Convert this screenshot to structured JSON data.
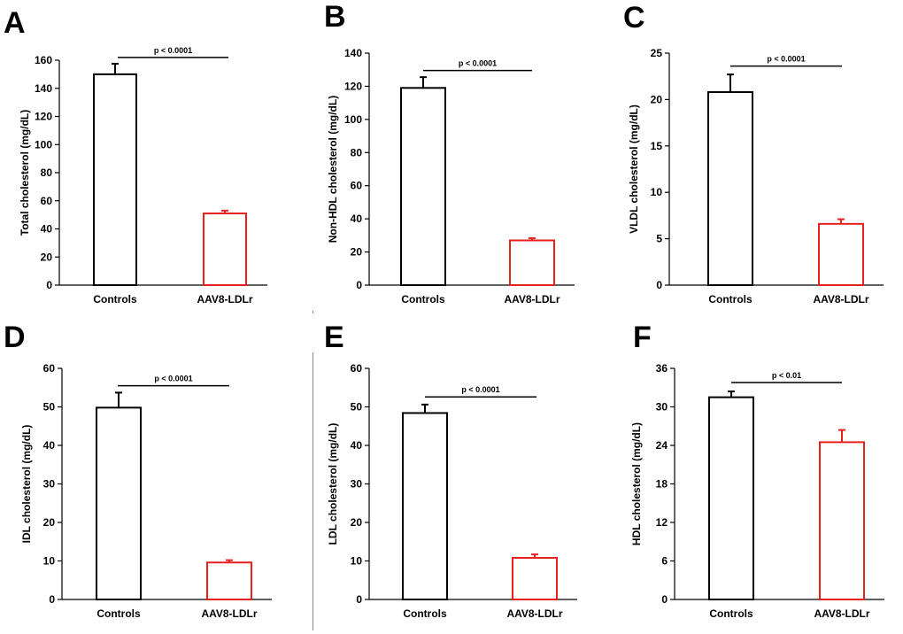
{
  "colors": {
    "controls": "#000000",
    "treated": "#e8201e",
    "axis": "#000000"
  },
  "chart_data": [
    {
      "panel": "A",
      "type": "bar",
      "ylabel": "Total cholesterol (mg/dL)",
      "categories": [
        "Controls",
        "AAV8-LDLr"
      ],
      "values": [
        150,
        51
      ],
      "errors": [
        7.5,
        2
      ],
      "ylim": [
        0,
        160
      ],
      "yticks": [
        0,
        20,
        40,
        60,
        80,
        100,
        120,
        140,
        160
      ],
      "significance": "p < 0.0001",
      "sig_y": 162
    },
    {
      "panel": "B",
      "type": "bar",
      "ylabel": "Non-HDL cholesterol (mg/dL)",
      "categories": [
        "Controls",
        "AAV8-LDLr"
      ],
      "values": [
        119,
        27
      ],
      "errors": [
        6.5,
        1.3
      ],
      "ylim": [
        0,
        140
      ],
      "yticks": [
        0,
        20,
        40,
        60,
        80,
        100,
        120,
        140
      ],
      "significance": "p < 0.0001",
      "sig_y": 129.5
    },
    {
      "panel": "C",
      "type": "bar",
      "ylabel": "VLDL cholesterol (mg/dL)",
      "categories": [
        "Controls",
        "AAV8-LDLr"
      ],
      "values": [
        20.8,
        6.6
      ],
      "errors": [
        1.9,
        0.5
      ],
      "ylim": [
        0,
        25
      ],
      "yticks": [
        0,
        5,
        10,
        15,
        20,
        25
      ],
      "significance": "p < 0.0001",
      "sig_y": 23.6
    },
    {
      "panel": "D",
      "type": "bar",
      "ylabel": "IDL cholesterol (mg/dL)",
      "categories": [
        "Controls",
        "AAV8-LDLr"
      ],
      "values": [
        49.8,
        9.6
      ],
      "errors": [
        3.9,
        0.6
      ],
      "ylim": [
        0,
        60
      ],
      "yticks": [
        0,
        10,
        20,
        30,
        40,
        50,
        60
      ],
      "significance": "p < 0.0001",
      "sig_y": 55.5
    },
    {
      "panel": "E",
      "type": "bar",
      "ylabel": "LDL cholesterol (mg/dL)",
      "categories": [
        "Controls",
        "AAV8-LDLr"
      ],
      "values": [
        48.4,
        10.8
      ],
      "errors": [
        2.2,
        0.9
      ],
      "ylim": [
        0,
        60
      ],
      "yticks": [
        0,
        10,
        20,
        30,
        40,
        50,
        60
      ],
      "significance": "p < 0.0001",
      "sig_y": 52.6
    },
    {
      "panel": "F",
      "type": "bar",
      "ylabel": "HDL cholesterol (mg/dL)",
      "categories": [
        "Controls",
        "AAV8-LDLr"
      ],
      "values": [
        31.5,
        24.5
      ],
      "errors": [
        0.9,
        1.9
      ],
      "ylim": [
        0,
        36
      ],
      "yticks": [
        0,
        6,
        12,
        18,
        24,
        30,
        36
      ],
      "significance": "p < 0.01",
      "sig_y": 33.8
    }
  ]
}
